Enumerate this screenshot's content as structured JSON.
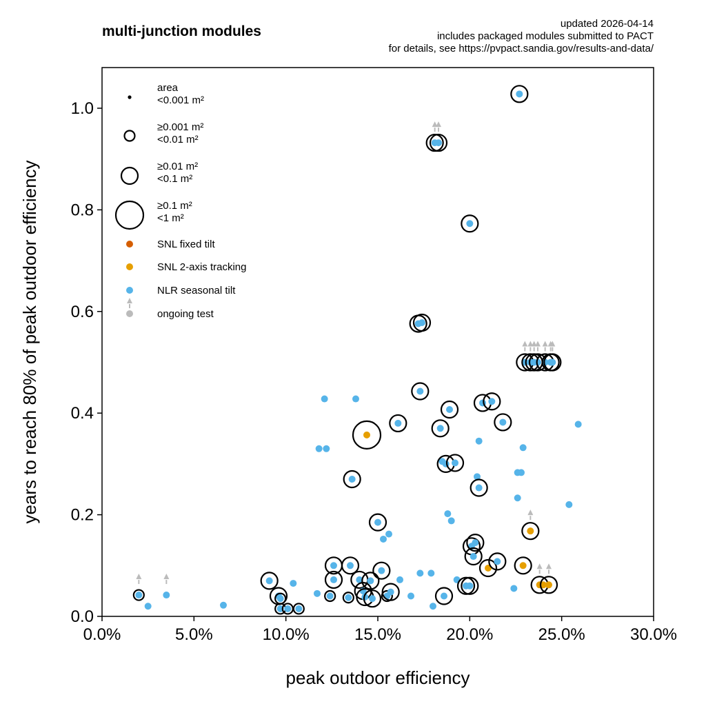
{
  "chart_data": {
    "type": "scatter",
    "title": "multi-junction modules",
    "notes": [
      "updated 2026-04-14",
      "includes packaged modules submitted to PACT",
      "for details, see https://pvpact.sandia.gov/results-and-data/"
    ],
    "xlabel": "peak outdoor efficiency",
    "ylabel": "years to reach 80% of peak outdoor efficiency",
    "xlim": [
      0,
      30
    ],
    "ylim": [
      0,
      1.08
    ],
    "x_ticks": [
      0,
      5,
      10,
      15,
      20,
      25,
      30
    ],
    "x_tick_labels": [
      "0.0%",
      "5.0%",
      "10.0%",
      "15.0%",
      "20.0%",
      "25.0%",
      "30.0%"
    ],
    "y_ticks": [
      0,
      0.2,
      0.4,
      0.6,
      0.8,
      1.0
    ],
    "y_tick_labels": [
      "0.0",
      "0.2",
      "0.4",
      "0.6",
      "0.8",
      "1.0"
    ],
    "grid": false,
    "legend_position": "top-left",
    "legend": {
      "area_title": "area",
      "area_classes": [
        {
          "label": [
            "<0.001 m²"
          ],
          "size": "xs"
        },
        {
          "label": [
            "≥0.001 m²",
            "<0.01 m²"
          ],
          "size": "s"
        },
        {
          "label": [
            "≥0.01 m²",
            "<0.1 m²"
          ],
          "size": "m"
        },
        {
          "label": [
            "≥0.1 m²",
            "<1 m²"
          ],
          "size": "l"
        }
      ],
      "series": [
        {
          "name": "SNL fixed tilt",
          "color": "#d55e00"
        },
        {
          "name": "SNL 2-axis tracking",
          "color": "#e69f00"
        },
        {
          "name": "NLR seasonal tilt",
          "color": "#56b4e9"
        }
      ],
      "ongoing_label": "ongoing test",
      "ongoing_color": "#bbbbbb"
    },
    "points": [
      {
        "x": 2.0,
        "y": 0.042,
        "s": "s",
        "series": "NLR seasonal tilt",
        "ongoing": true
      },
      {
        "x": 2.5,
        "y": 0.02,
        "s": "xs",
        "series": "NLR seasonal tilt"
      },
      {
        "x": 3.5,
        "y": 0.042,
        "s": "xs",
        "series": "NLR seasonal tilt",
        "ongoing": true
      },
      {
        "x": 6.6,
        "y": 0.022,
        "s": "xs",
        "series": "NLR seasonal tilt"
      },
      {
        "x": 9.1,
        "y": 0.07,
        "s": "m",
        "series": "NLR seasonal tilt"
      },
      {
        "x": 9.6,
        "y": 0.04,
        "s": "m",
        "series": "NLR seasonal tilt"
      },
      {
        "x": 9.7,
        "y": 0.035,
        "s": "s",
        "series": "NLR seasonal tilt"
      },
      {
        "x": 9.7,
        "y": 0.015,
        "s": "s",
        "series": "NLR seasonal tilt"
      },
      {
        "x": 10.1,
        "y": 0.015,
        "s": "s",
        "series": "NLR seasonal tilt"
      },
      {
        "x": 10.4,
        "y": 0.065,
        "s": "xs",
        "series": "NLR seasonal tilt"
      },
      {
        "x": 10.7,
        "y": 0.015,
        "s": "s",
        "series": "NLR seasonal tilt"
      },
      {
        "x": 11.7,
        "y": 0.045,
        "s": "xs",
        "series": "NLR seasonal tilt"
      },
      {
        "x": 11.8,
        "y": 0.33,
        "s": "xs",
        "series": "NLR seasonal tilt"
      },
      {
        "x": 12.1,
        "y": 0.428,
        "s": "xs",
        "series": "NLR seasonal tilt"
      },
      {
        "x": 12.2,
        "y": 0.33,
        "s": "xs",
        "series": "NLR seasonal tilt"
      },
      {
        "x": 12.4,
        "y": 0.04,
        "s": "s",
        "series": "NLR seasonal tilt"
      },
      {
        "x": 12.6,
        "y": 0.1,
        "s": "m",
        "series": "NLR seasonal tilt"
      },
      {
        "x": 12.6,
        "y": 0.072,
        "s": "m",
        "series": "NLR seasonal tilt"
      },
      {
        "x": 13.4,
        "y": 0.037,
        "s": "s",
        "series": "NLR seasonal tilt"
      },
      {
        "x": 13.5,
        "y": 0.1,
        "s": "m",
        "series": "NLR seasonal tilt"
      },
      {
        "x": 13.6,
        "y": 0.27,
        "s": "m",
        "series": "NLR seasonal tilt"
      },
      {
        "x": 13.8,
        "y": 0.428,
        "s": "xs",
        "series": "NLR seasonal tilt"
      },
      {
        "x": 14.0,
        "y": 0.072,
        "s": "m",
        "series": "NLR seasonal tilt"
      },
      {
        "x": 14.2,
        "y": 0.05,
        "s": "m",
        "series": "NLR seasonal tilt"
      },
      {
        "x": 14.3,
        "y": 0.038,
        "s": "m",
        "series": "NLR seasonal tilt"
      },
      {
        "x": 14.4,
        "y": 0.357,
        "s": "l",
        "series": "SNL 2-axis tracking"
      },
      {
        "x": 14.6,
        "y": 0.07,
        "s": "m",
        "series": "NLR seasonal tilt"
      },
      {
        "x": 14.7,
        "y": 0.035,
        "s": "m",
        "series": "NLR seasonal tilt"
      },
      {
        "x": 15.0,
        "y": 0.185,
        "s": "m",
        "series": "NLR seasonal tilt"
      },
      {
        "x": 15.2,
        "y": 0.09,
        "s": "m",
        "series": "NLR seasonal tilt"
      },
      {
        "x": 15.3,
        "y": 0.152,
        "s": "xs",
        "series": "NLR seasonal tilt"
      },
      {
        "x": 15.5,
        "y": 0.04,
        "s": "s",
        "series": "NLR seasonal tilt"
      },
      {
        "x": 15.6,
        "y": 0.162,
        "s": "xs",
        "series": "NLR seasonal tilt"
      },
      {
        "x": 15.7,
        "y": 0.048,
        "s": "m",
        "series": "NLR seasonal tilt"
      },
      {
        "x": 16.1,
        "y": 0.38,
        "s": "m",
        "series": "NLR seasonal tilt"
      },
      {
        "x": 16.2,
        "y": 0.072,
        "s": "xs",
        "series": "NLR seasonal tilt"
      },
      {
        "x": 16.8,
        "y": 0.04,
        "s": "xs",
        "series": "NLR seasonal tilt"
      },
      {
        "x": 17.2,
        "y": 0.576,
        "s": "m",
        "series": "NLR seasonal tilt"
      },
      {
        "x": 17.3,
        "y": 0.443,
        "s": "m",
        "series": "NLR seasonal tilt"
      },
      {
        "x": 17.3,
        "y": 0.085,
        "s": "xs",
        "series": "NLR seasonal tilt"
      },
      {
        "x": 17.4,
        "y": 0.578,
        "s": "m",
        "series": "NLR seasonal tilt"
      },
      {
        "x": 17.9,
        "y": 0.085,
        "s": "xs",
        "series": "NLR seasonal tilt"
      },
      {
        "x": 18.0,
        "y": 0.02,
        "s": "xs",
        "series": "NLR seasonal tilt"
      },
      {
        "x": 18.1,
        "y": 0.932,
        "s": "m",
        "series": "NLR seasonal tilt",
        "ongoing": true
      },
      {
        "x": 18.3,
        "y": 0.932,
        "s": "m",
        "series": "NLR seasonal tilt",
        "ongoing": true
      },
      {
        "x": 18.4,
        "y": 0.37,
        "s": "m",
        "series": "NLR seasonal tilt"
      },
      {
        "x": 18.5,
        "y": 0.305,
        "s": "xs",
        "series": "NLR seasonal tilt"
      },
      {
        "x": 18.6,
        "y": 0.04,
        "s": "m",
        "series": "NLR seasonal tilt"
      },
      {
        "x": 18.7,
        "y": 0.3,
        "s": "m",
        "series": "NLR seasonal tilt"
      },
      {
        "x": 18.8,
        "y": 0.202,
        "s": "xs",
        "series": "NLR seasonal tilt"
      },
      {
        "x": 18.9,
        "y": 0.407,
        "s": "m",
        "series": "NLR seasonal tilt"
      },
      {
        "x": 19.0,
        "y": 0.188,
        "s": "xs",
        "series": "NLR seasonal tilt"
      },
      {
        "x": 19.2,
        "y": 0.302,
        "s": "m",
        "series": "NLR seasonal tilt"
      },
      {
        "x": 19.3,
        "y": 0.072,
        "s": "xs",
        "series": "NLR seasonal tilt"
      },
      {
        "x": 19.8,
        "y": 0.06,
        "s": "m",
        "series": "NLR seasonal tilt"
      },
      {
        "x": 20.0,
        "y": 0.06,
        "s": "m",
        "series": "NLR seasonal tilt"
      },
      {
        "x": 20.0,
        "y": 0.773,
        "s": "m",
        "series": "NLR seasonal tilt"
      },
      {
        "x": 20.1,
        "y": 0.138,
        "s": "m",
        "series": "NLR seasonal tilt"
      },
      {
        "x": 20.2,
        "y": 0.118,
        "s": "m",
        "series": "NLR seasonal tilt"
      },
      {
        "x": 20.3,
        "y": 0.145,
        "s": "m",
        "series": "NLR seasonal tilt"
      },
      {
        "x": 20.4,
        "y": 0.275,
        "s": "xs",
        "series": "NLR seasonal tilt"
      },
      {
        "x": 20.5,
        "y": 0.345,
        "s": "xs",
        "series": "NLR seasonal tilt"
      },
      {
        "x": 20.5,
        "y": 0.253,
        "s": "m",
        "series": "NLR seasonal tilt"
      },
      {
        "x": 20.7,
        "y": 0.42,
        "s": "m",
        "series": "NLR seasonal tilt"
      },
      {
        "x": 21.0,
        "y": 0.095,
        "s": "m",
        "series": "SNL 2-axis tracking"
      },
      {
        "x": 21.2,
        "y": 0.423,
        "s": "m",
        "series": "NLR seasonal tilt"
      },
      {
        "x": 21.5,
        "y": 0.108,
        "s": "m",
        "series": "NLR seasonal tilt"
      },
      {
        "x": 21.8,
        "y": 0.382,
        "s": "m",
        "series": "NLR seasonal tilt"
      },
      {
        "x": 22.4,
        "y": 0.055,
        "s": "xs",
        "series": "NLR seasonal tilt"
      },
      {
        "x": 22.6,
        "y": 0.283,
        "s": "xs",
        "series": "NLR seasonal tilt"
      },
      {
        "x": 22.6,
        "y": 0.233,
        "s": "xs",
        "series": "NLR seasonal tilt"
      },
      {
        "x": 22.7,
        "y": 1.028,
        "s": "m",
        "series": "NLR seasonal tilt"
      },
      {
        "x": 22.8,
        "y": 0.283,
        "s": "xs",
        "series": "NLR seasonal tilt"
      },
      {
        "x": 22.9,
        "y": 0.1,
        "s": "m",
        "series": "SNL 2-axis tracking"
      },
      {
        "x": 22.9,
        "y": 0.332,
        "s": "xs",
        "series": "NLR seasonal tilt"
      },
      {
        "x": 23.0,
        "y": 0.5,
        "s": "m",
        "series": "NLR seasonal tilt",
        "ongoing": true
      },
      {
        "x": 23.3,
        "y": 0.5,
        "s": "m",
        "series": "NLR seasonal tilt",
        "ongoing": true
      },
      {
        "x": 23.3,
        "y": 0.168,
        "s": "m",
        "series": "SNL 2-axis tracking",
        "ongoing": true
      },
      {
        "x": 23.5,
        "y": 0.5,
        "s": "m",
        "series": "NLR seasonal tilt",
        "ongoing": true
      },
      {
        "x": 23.7,
        "y": 0.5,
        "s": "m",
        "series": "NLR seasonal tilt",
        "ongoing": true
      },
      {
        "x": 23.8,
        "y": 0.062,
        "s": "m",
        "series": "SNL 2-axis tracking",
        "ongoing": true
      },
      {
        "x": 24.0,
        "y": 0.062,
        "s": "xs",
        "series": "SNL 2-axis tracking"
      },
      {
        "x": 24.1,
        "y": 0.5,
        "s": "m",
        "series": "NLR seasonal tilt",
        "ongoing": true
      },
      {
        "x": 24.3,
        "y": 0.062,
        "s": "m",
        "series": "SNL 2-axis tracking",
        "ongoing": true
      },
      {
        "x": 24.4,
        "y": 0.5,
        "s": "m",
        "series": "NLR seasonal tilt",
        "ongoing": true
      },
      {
        "x": 24.5,
        "y": 0.5,
        "s": "m",
        "series": "NLR seasonal tilt",
        "ongoing": true
      },
      {
        "x": 25.4,
        "y": 0.22,
        "s": "xs",
        "series": "NLR seasonal tilt"
      },
      {
        "x": 25.9,
        "y": 0.378,
        "s": "xs",
        "series": "NLR seasonal tilt"
      }
    ]
  }
}
